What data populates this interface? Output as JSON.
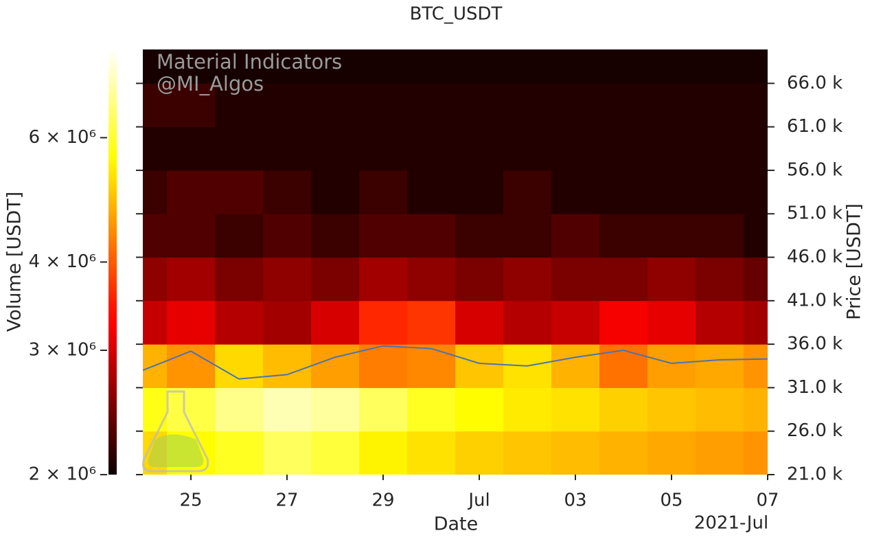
{
  "chart_data": {
    "type": "heatmap",
    "title": "BTC_USDT",
    "xlabel": "Date",
    "x_offset_label": "2021-Jul",
    "ylabel": "Price [USDT]",
    "colorbar_label": "Volume [USDT]",
    "watermark": [
      "Material Indicators",
      "@MI_Algos"
    ],
    "xlim": [
      "2021-06-24",
      "2021-07-07"
    ],
    "xticks": [
      {
        "value": "2021-06-25",
        "label": "25"
      },
      {
        "value": "2021-06-27",
        "label": "27"
      },
      {
        "value": "2021-06-29",
        "label": "29"
      },
      {
        "value": "2021-07-01",
        "label": "Jul"
      },
      {
        "value": "2021-07-03",
        "label": "03"
      },
      {
        "value": "2021-07-05",
        "label": "05"
      },
      {
        "value": "2021-07-07",
        "label": "07"
      }
    ],
    "ylim": [
      21000,
      69900
    ],
    "yticks": [
      {
        "value": 21000,
        "label": "21.0 k"
      },
      {
        "value": 26000,
        "label": "26.0 k"
      },
      {
        "value": 31000,
        "label": "31.0 k"
      },
      {
        "value": 36000,
        "label": "36.0 k"
      },
      {
        "value": 41000,
        "label": "41.0 k"
      },
      {
        "value": 46000,
        "label": "46.0 k"
      },
      {
        "value": 51000,
        "label": "51.0 k"
      },
      {
        "value": 56000,
        "label": "56.0 k"
      },
      {
        "value": 61000,
        "label": "61.0 k"
      },
      {
        "value": 66000,
        "label": "66.0 k"
      }
    ],
    "clim": [
      2000000,
      8000000
    ],
    "clog": true,
    "cticks": [
      {
        "value": 2000000,
        "label": "2 × 10⁶"
      },
      {
        "value": 3000000,
        "label": "3 × 10⁶"
      },
      {
        "value": 4000000,
        "label": "4 × 10⁶"
      },
      {
        "value": 6000000,
        "label": "6 × 10⁶"
      }
    ],
    "x": [
      "2021-06-24",
      "2021-06-25",
      "2021-06-26",
      "2021-06-27",
      "2021-06-28",
      "2021-06-29",
      "2021-06-30",
      "2021-07-01",
      "2021-07-02",
      "2021-07-03",
      "2021-07-04",
      "2021-07-05",
      "2021-07-06",
      "2021-07-07"
    ],
    "y_bins": [
      21000,
      26000,
      31000,
      36000,
      41000,
      46000,
      51000,
      56000,
      61000,
      66000,
      71000
    ],
    "values": [
      [
        5200000,
        5600000,
        5900000,
        6400000,
        6100000,
        5500000,
        5300000,
        5100000,
        5000000,
        4900000,
        4800000,
        4700000,
        4600000,
        4500000
      ],
      [
        5800000,
        6200000,
        6800000,
        7200000,
        7000000,
        6400000,
        5900000,
        5600000,
        5400000,
        5300000,
        5100000,
        5000000,
        4900000,
        4800000
      ],
      [
        4800000,
        4500000,
        5200000,
        4900000,
        4600000,
        4300000,
        4400000,
        5000000,
        5300000,
        4800000,
        4200000,
        4600000,
        4700000,
        4500000
      ],
      [
        2900000,
        3100000,
        2800000,
        2700000,
        3000000,
        3600000,
        3700000,
        3000000,
        2800000,
        2900000,
        3200000,
        3100000,
        2800000,
        2700000
      ],
      [
        2600000,
        2700000,
        2500000,
        2600000,
        2500000,
        2700000,
        2600000,
        2500000,
        2600000,
        2500000,
        2500000,
        2600000,
        2500000,
        2400000
      ],
      [
        2300000,
        2300000,
        2200000,
        2300000,
        2200000,
        2300000,
        2300000,
        2200000,
        2200000,
        2300000,
        2200000,
        2200000,
        2200000,
        2100000
      ],
      [
        2200000,
        2300000,
        2300000,
        2200000,
        2100000,
        2200000,
        2100000,
        2100000,
        2200000,
        2100000,
        2100000,
        2100000,
        2100000,
        2100000
      ],
      [
        2100000,
        2100000,
        2100000,
        2100000,
        2100000,
        2100000,
        2100000,
        2100000,
        2100000,
        2100000,
        2100000,
        2100000,
        2100000,
        2100000
      ],
      [
        2200000,
        2200000,
        2100000,
        2100000,
        2100000,
        2100000,
        2100000,
        2100000,
        2100000,
        2100000,
        2100000,
        2100000,
        2100000,
        2100000
      ],
      [
        2050000,
        2050000,
        2050000,
        2050000,
        2050000,
        2050000,
        2050000,
        2050000,
        2050000,
        2050000,
        2050000,
        2050000,
        2050000,
        2050000
      ]
    ],
    "series": [
      {
        "name": "Price",
        "color": "#4c72b0",
        "values": [
          33000,
          35200,
          32000,
          32500,
          34500,
          35800,
          35500,
          33800,
          33500,
          34500,
          35300,
          33800,
          34200,
          34300
        ]
      }
    ]
  }
}
